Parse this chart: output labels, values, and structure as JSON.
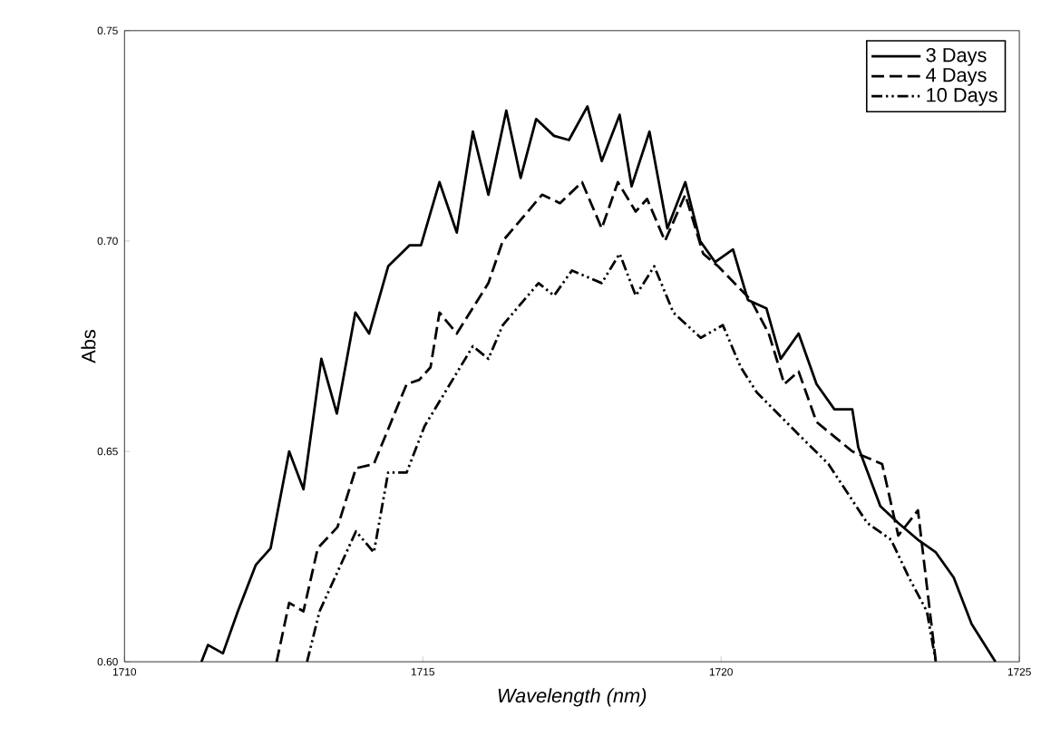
{
  "chart_data": {
    "type": "line",
    "xlabel": "Wavelength (nm)",
    "ylabel": "Abs",
    "xlim": [
      1710,
      1725
    ],
    "xticks": [
      1710,
      1715,
      1720,
      1725
    ],
    "ylim": [
      0.6,
      0.75
    ],
    "yticks": [
      {
        "value": 0.6,
        "label": "0.60"
      },
      {
        "value": 0.65,
        "label": "0.65"
      },
      {
        "value": 0.7,
        "label": "0.70"
      },
      {
        "value": 0.75,
        "label": "0.75"
      }
    ],
    "legend": "top right",
    "grid": false,
    "marker": "none",
    "series": [
      {
        "name": "3 Days",
        "color": "#000000",
        "line_style": "solid",
        "x": [
          1711.29,
          1711.4,
          1711.65,
          1711.9,
          1712.2,
          1712.45,
          1712.76,
          1713.0,
          1713.3,
          1713.56,
          1713.87,
          1714.1,
          1714.42,
          1714.78,
          1714.97,
          1715.28,
          1715.57,
          1715.84,
          1716.1,
          1716.4,
          1716.64,
          1716.9,
          1717.2,
          1717.45,
          1717.76,
          1718.0,
          1718.3,
          1718.5,
          1718.8,
          1719.1,
          1719.4,
          1719.65,
          1719.9,
          1720.2,
          1720.45,
          1720.76,
          1721.0,
          1721.3,
          1721.6,
          1721.9,
          1722.2,
          1722.3,
          1722.67,
          1722.97,
          1723.3,
          1723.6,
          1723.9,
          1724.2,
          1724.6
        ],
        "values": [
          0.6,
          0.604,
          0.602,
          0.612,
          0.623,
          0.627,
          0.65,
          0.641,
          0.672,
          0.659,
          0.683,
          0.678,
          0.694,
          0.699,
          0.699,
          0.714,
          0.702,
          0.726,
          0.711,
          0.731,
          0.715,
          0.729,
          0.725,
          0.724,
          0.732,
          0.719,
          0.73,
          0.713,
          0.726,
          0.703,
          0.714,
          0.7,
          0.695,
          0.698,
          0.686,
          0.684,
          0.672,
          0.678,
          0.666,
          0.66,
          0.66,
          0.651,
          0.637,
          0.633,
          0.629,
          0.626,
          0.62,
          0.609,
          0.6
        ]
      },
      {
        "name": "4 Days",
        "color": "#000000",
        "line_style": "dashed",
        "x": [
          1712.55,
          1712.76,
          1713.0,
          1713.24,
          1713.57,
          1713.88,
          1714.18,
          1714.73,
          1714.94,
          1715.13,
          1715.28,
          1715.57,
          1716.1,
          1716.34,
          1717.0,
          1717.3,
          1717.67,
          1718.0,
          1718.27,
          1718.57,
          1718.76,
          1719.06,
          1719.4,
          1719.7,
          1719.95,
          1720.5,
          1720.8,
          1721.06,
          1721.3,
          1721.6,
          1722.2,
          1722.7,
          1722.97,
          1723.3,
          1723.6
        ],
        "values": [
          0.6,
          0.614,
          0.612,
          0.627,
          0.632,
          0.646,
          0.647,
          0.666,
          0.667,
          0.67,
          0.683,
          0.678,
          0.69,
          0.7,
          0.711,
          0.709,
          0.714,
          0.703,
          0.714,
          0.707,
          0.71,
          0.7,
          0.711,
          0.697,
          0.694,
          0.686,
          0.678,
          0.666,
          0.669,
          0.657,
          0.65,
          0.647,
          0.63,
          0.636,
          0.6
        ]
      },
      {
        "name": "10 Days",
        "color": "#000000",
        "line_style": "dotted",
        "x": [
          1713.06,
          1713.27,
          1713.88,
          1714.18,
          1714.42,
          1714.73,
          1715.03,
          1715.84,
          1716.1,
          1716.34,
          1716.94,
          1717.2,
          1717.5,
          1718.0,
          1718.3,
          1718.57,
          1718.88,
          1719.2,
          1719.66,
          1720.03,
          1720.33,
          1720.6,
          1721.3,
          1721.8,
          1722.45,
          1722.85,
          1723.15,
          1723.45,
          1723.6
        ],
        "values": [
          0.6,
          0.612,
          0.631,
          0.626,
          0.645,
          0.645,
          0.656,
          0.675,
          0.672,
          0.68,
          0.69,
          0.687,
          0.693,
          0.69,
          0.697,
          0.687,
          0.694,
          0.683,
          0.677,
          0.68,
          0.67,
          0.664,
          0.654,
          0.647,
          0.633,
          0.629,
          0.62,
          0.612,
          0.6
        ]
      }
    ]
  }
}
